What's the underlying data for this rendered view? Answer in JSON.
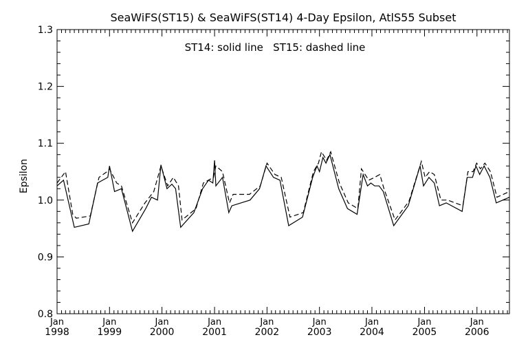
{
  "chart_data": {
    "type": "line",
    "title": "SeaWiFS(ST15) & SeaWiFS(ST14) 4-Day Epsilon, AtlS55 Subset",
    "annotation": "ST14: solid line   ST15: dashed line",
    "xlabel": "",
    "ylabel": "Epsilon",
    "xlim": [
      "1998-01-01",
      "2006-08-15"
    ],
    "ylim": [
      0.8,
      1.3
    ],
    "yticks": [
      "0.8",
      "0.9",
      "1.0",
      "1.1",
      "1.2",
      "1.3"
    ],
    "xticks": [
      {
        "date": "1998-01-01",
        "month": "Jan",
        "year": "1998"
      },
      {
        "date": "1999-01-01",
        "month": "Jan",
        "year": "1999"
      },
      {
        "date": "2000-01-01",
        "month": "Jan",
        "year": "2000"
      },
      {
        "date": "2001-01-01",
        "month": "Jan",
        "year": "2001"
      },
      {
        "date": "2002-01-01",
        "month": "Jan",
        "year": "2002"
      },
      {
        "date": "2003-01-01",
        "month": "Jan",
        "year": "2003"
      },
      {
        "date": "2004-01-01",
        "month": "Jan",
        "year": "2004"
      },
      {
        "date": "2005-01-01",
        "month": "Jan",
        "year": "2005"
      },
      {
        "date": "2006-01-01",
        "month": "Jan",
        "year": "2006"
      }
    ],
    "grid": false,
    "legend": "none",
    "series": [
      {
        "style": "solid",
        "color": "#000000",
        "points": [
          [
            "1998-01-01",
            1.025
          ],
          [
            "1998-02-15",
            1.035
          ],
          [
            "1998-05-01",
            0.952
          ],
          [
            "1998-08-10",
            0.958
          ],
          [
            "1998-10-10",
            1.03
          ],
          [
            "1998-12-20",
            1.04
          ],
          [
            "1999-01-01",
            1.06
          ],
          [
            "1999-02-05",
            1.015
          ],
          [
            "1999-03-25",
            1.02
          ],
          [
            "1999-06-10",
            0.945
          ],
          [
            "1999-09-10",
            0.985
          ],
          [
            "1999-10-20",
            1.005
          ],
          [
            "1999-12-01",
            1.0
          ],
          [
            "1999-12-25",
            1.062
          ],
          [
            "2000-02-05",
            1.02
          ],
          [
            "2000-03-10",
            1.028
          ],
          [
            "2000-04-05",
            1.02
          ],
          [
            "2000-05-10",
            0.952
          ],
          [
            "2000-08-10",
            0.978
          ],
          [
            "2000-10-10",
            1.02
          ],
          [
            "2000-11-20",
            1.035
          ],
          [
            "2000-12-20",
            1.03
          ],
          [
            "2001-01-01",
            1.07
          ],
          [
            "2001-01-10",
            1.025
          ],
          [
            "2001-02-25",
            1.04
          ],
          [
            "2001-04-10",
            0.978
          ],
          [
            "2001-05-01",
            0.99
          ],
          [
            "2001-09-05",
            1.0
          ],
          [
            "2001-11-10",
            1.02
          ],
          [
            "2001-12-25",
            1.06
          ],
          [
            "2002-02-15",
            1.04
          ],
          [
            "2002-04-01",
            1.035
          ],
          [
            "2002-06-01",
            0.955
          ],
          [
            "2002-09-05",
            0.97
          ],
          [
            "2002-11-15",
            1.04
          ],
          [
            "2002-12-15",
            1.06
          ],
          [
            "2003-01-01",
            1.05
          ],
          [
            "2003-01-25",
            1.075
          ],
          [
            "2003-02-15",
            1.065
          ],
          [
            "2003-03-15",
            1.08
          ],
          [
            "2003-05-15",
            1.02
          ],
          [
            "2003-07-15",
            0.985
          ],
          [
            "2003-09-20",
            0.975
          ],
          [
            "2003-11-01",
            1.045
          ],
          [
            "2003-12-01",
            1.025
          ],
          [
            "2003-12-25",
            1.03
          ],
          [
            "2004-01-20",
            1.025
          ],
          [
            "2004-02-20",
            1.025
          ],
          [
            "2004-03-20",
            1.015
          ],
          [
            "2004-06-01",
            0.955
          ],
          [
            "2004-09-10",
            0.99
          ],
          [
            "2004-12-01",
            1.06
          ],
          [
            "2004-12-25",
            1.025
          ],
          [
            "2005-02-01",
            1.04
          ],
          [
            "2005-03-10",
            1.03
          ],
          [
            "2005-04-15",
            0.99
          ],
          [
            "2005-06-01",
            0.995
          ],
          [
            "2005-09-20",
            0.98
          ],
          [
            "2005-10-25",
            1.04
          ],
          [
            "2005-12-01",
            1.04
          ],
          [
            "2005-12-25",
            1.06
          ],
          [
            "2006-01-20",
            1.045
          ],
          [
            "2006-02-20",
            1.06
          ],
          [
            "2006-04-01",
            1.04
          ],
          [
            "2006-05-15",
            0.995
          ],
          [
            "2006-08-15",
            1.005
          ]
        ]
      },
      {
        "style": "dashed",
        "color": "#000000",
        "points": [
          [
            "1998-01-01",
            1.03
          ],
          [
            "1998-03-01",
            1.05
          ],
          [
            "1998-04-20",
            0.975
          ],
          [
            "1998-05-15",
            0.968
          ],
          [
            "1998-08-20",
            0.972
          ],
          [
            "1998-10-20",
            1.04
          ],
          [
            "1998-12-15",
            1.05
          ],
          [
            "1999-01-01",
            1.055
          ],
          [
            "1999-02-20",
            1.03
          ],
          [
            "1999-03-25",
            1.025
          ],
          [
            "1999-06-10",
            0.96
          ],
          [
            "1999-09-05",
            0.995
          ],
          [
            "1999-11-05",
            1.015
          ],
          [
            "1999-12-25",
            1.06
          ],
          [
            "2000-02-10",
            1.025
          ],
          [
            "2000-03-20",
            1.04
          ],
          [
            "2000-04-25",
            1.025
          ],
          [
            "2000-05-20",
            0.965
          ],
          [
            "2000-08-25",
            0.985
          ],
          [
            "2000-10-15",
            1.03
          ],
          [
            "2000-12-25",
            1.04
          ],
          [
            "2001-01-10",
            1.06
          ],
          [
            "2001-02-25",
            1.05
          ],
          [
            "2001-04-15",
            0.995
          ],
          [
            "2001-05-10",
            1.01
          ],
          [
            "2001-09-01",
            1.01
          ],
          [
            "2001-11-15",
            1.025
          ],
          [
            "2002-01-01",
            1.065
          ],
          [
            "2002-02-25",
            1.045
          ],
          [
            "2002-04-10",
            1.04
          ],
          [
            "2002-06-10",
            0.97
          ],
          [
            "2002-09-10",
            0.978
          ],
          [
            "2002-11-20",
            1.05
          ],
          [
            "2002-12-25",
            1.065
          ],
          [
            "2003-01-15",
            1.085
          ],
          [
            "2003-02-20",
            1.07
          ],
          [
            "2003-03-20",
            1.085
          ],
          [
            "2003-05-20",
            1.03
          ],
          [
            "2003-07-20",
            0.995
          ],
          [
            "2003-09-25",
            0.985
          ],
          [
            "2003-10-20",
            1.055
          ],
          [
            "2003-12-10",
            1.035
          ],
          [
            "2004-01-20",
            1.04
          ],
          [
            "2004-02-25",
            1.045
          ],
          [
            "2004-03-25",
            1.02
          ],
          [
            "2004-06-10",
            0.965
          ],
          [
            "2004-09-15",
            0.998
          ],
          [
            "2004-12-10",
            1.068
          ],
          [
            "2005-01-05",
            1.04
          ],
          [
            "2005-02-05",
            1.05
          ],
          [
            "2005-03-10",
            1.045
          ],
          [
            "2005-04-25",
            1.0
          ],
          [
            "2005-06-10",
            1.0
          ],
          [
            "2005-09-25",
            0.99
          ],
          [
            "2005-10-30",
            1.05
          ],
          [
            "2005-12-05",
            1.05
          ],
          [
            "2005-12-30",
            1.065
          ],
          [
            "2006-01-25",
            1.055
          ],
          [
            "2006-02-25",
            1.065
          ],
          [
            "2006-04-05",
            1.05
          ],
          [
            "2006-05-20",
            1.005
          ],
          [
            "2006-08-15",
            1.015
          ]
        ]
      }
    ]
  }
}
